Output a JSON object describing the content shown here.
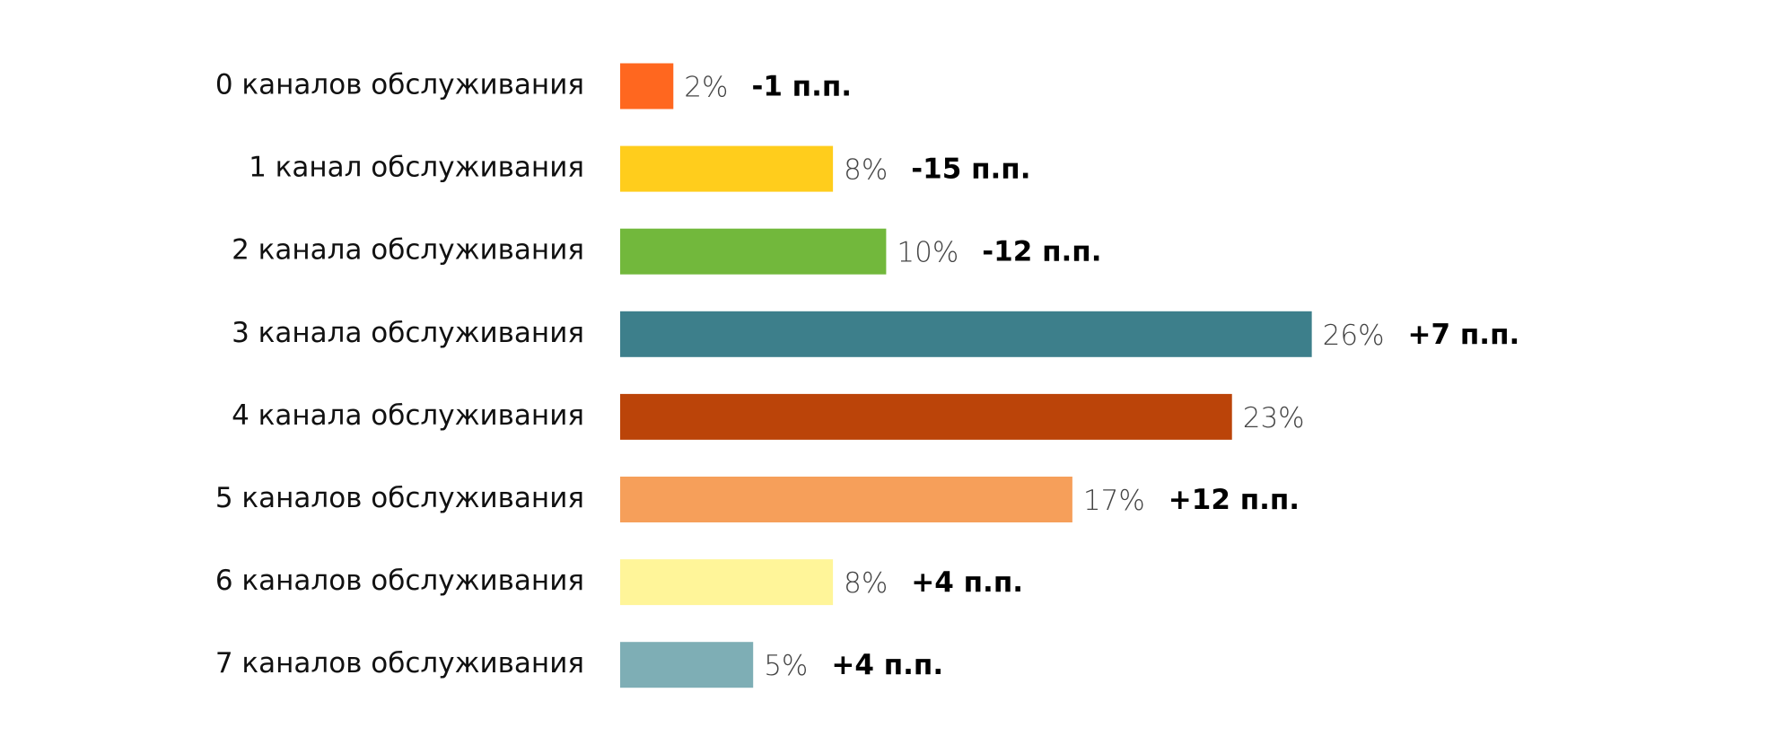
{
  "chart_data": {
    "type": "bar",
    "orientation": "horizontal",
    "categories": [
      "0 каналов обслуживания",
      "1 канал обслуживания",
      "2 канала обслуживания",
      "3 канала обслуживания",
      "4 канала обслуживания",
      "5 каналов обслуживания",
      "6 каналов обслуживания",
      "7 каналов обслуживания"
    ],
    "values": [
      2,
      8,
      10,
      26,
      23,
      17,
      8,
      5
    ],
    "value_labels": [
      "2%",
      "8%",
      "10%",
      "26%",
      "23%",
      "17%",
      "8%",
      "5%"
    ],
    "changes": [
      "-1 п.п.",
      "-15 п.п.",
      "-12 п.п.",
      "+7 п.п.",
      null,
      "+12 п.п.",
      "+4 п.п.",
      "+4 п.п."
    ],
    "colors": [
      "#ff671f",
      "#ffcd1c",
      "#72b83c",
      "#3d7f8b",
      "#bb4409",
      "#f69f5a",
      "#fff599",
      "#7eaeb5"
    ]
  }
}
